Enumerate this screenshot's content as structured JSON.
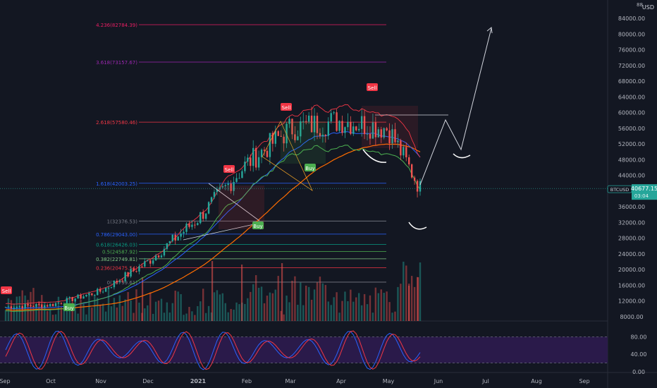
{
  "header": {
    "currency": "USD"
  },
  "price_axis": {
    "ticks": [
      "84000.00",
      "80000.00",
      "76000.00",
      "72000.00",
      "68000.00",
      "64000.00",
      "60000.00",
      "56000.00",
      "52000.00",
      "48000.00",
      "44000.00",
      "36000.00",
      "32000.00",
      "28000.00",
      "24000.00",
      "20000.00",
      "16000.00",
      "12000.00",
      "8000.00"
    ],
    "top_partial": "88"
  },
  "price_badge": {
    "symbol": "BTCUSD",
    "price": "40677.15",
    "countdown": "03:04",
    "color": "#26a69a"
  },
  "time_axis": {
    "labels": [
      "Sep",
      "Oct",
      "Nov",
      "Dec",
      "2021",
      "Feb",
      "Mar",
      "Apr",
      "May",
      "Jun",
      "Jul",
      "Aug",
      "Sep"
    ]
  },
  "oscillator": {
    "ticks": [
      "80.00",
      "40.00",
      "0.00"
    ],
    "upper": 80,
    "lower": 20,
    "band_color": "#2a1a4a"
  },
  "fib_levels": [
    {
      "label": "4.236(82784.39)",
      "value": 82784.39,
      "color": "#e91e63"
    },
    {
      "label": "3.618(73157.67)",
      "value": 73157.67,
      "color": "#9c27b0"
    },
    {
      "label": "2.618(57580.46)",
      "value": 57580.46,
      "color": "#f23645"
    },
    {
      "label": "1.618(42003.25)",
      "value": 42003.25,
      "color": "#2962ff"
    },
    {
      "label": "1(32376.53)",
      "value": 32376.53,
      "color": "#787b86"
    },
    {
      "label": "0.786(29043.00)",
      "value": 29043.0,
      "color": "#2962ff"
    },
    {
      "label": "0.618(26426.03)",
      "value": 26426.03,
      "color": "#089981"
    },
    {
      "label": "0.5(24587.92)",
      "value": 24587.92,
      "color": "#4caf50"
    },
    {
      "label": "0.382(22749.81)",
      "value": 22749.81,
      "color": "#81c784"
    },
    {
      "label": "0.236(20475.54)",
      "value": 20475.54,
      "color": "#f23645"
    },
    {
      "label": "0(16799.61)",
      "value": 16799.61,
      "color": "#787b86"
    }
  ],
  "signals": [
    {
      "type": "Sell",
      "color": "#f23645"
    },
    {
      "type": "Buy",
      "color": "#4caf50"
    },
    {
      "type": "Sell",
      "color": "#f23645"
    },
    {
      "type": "Buy",
      "color": "#4caf50"
    },
    {
      "type": "Sell",
      "color": "#f23645"
    },
    {
      "type": "Buy",
      "color": "#4caf50"
    },
    {
      "type": "Sell",
      "color": "#f23645"
    }
  ],
  "chart_data": {
    "type": "line",
    "symbol": "BTCUSD",
    "x": [
      "2020-09",
      "2020-10",
      "2020-11",
      "2020-12",
      "2021-01",
      "2021-02",
      "2021-03",
      "2021-04",
      "2021-05",
      "2021-05-20"
    ],
    "series": [
      {
        "values": [
          10500,
          11000,
          14500,
          22000,
          33000,
          47000,
          56000,
          58000,
          56000,
          40677
        ]
      }
    ],
    "ylim": [
      6000,
      88000
    ],
    "colors": {
      "up": "#26a69a",
      "down": "#ef5350"
    }
  }
}
